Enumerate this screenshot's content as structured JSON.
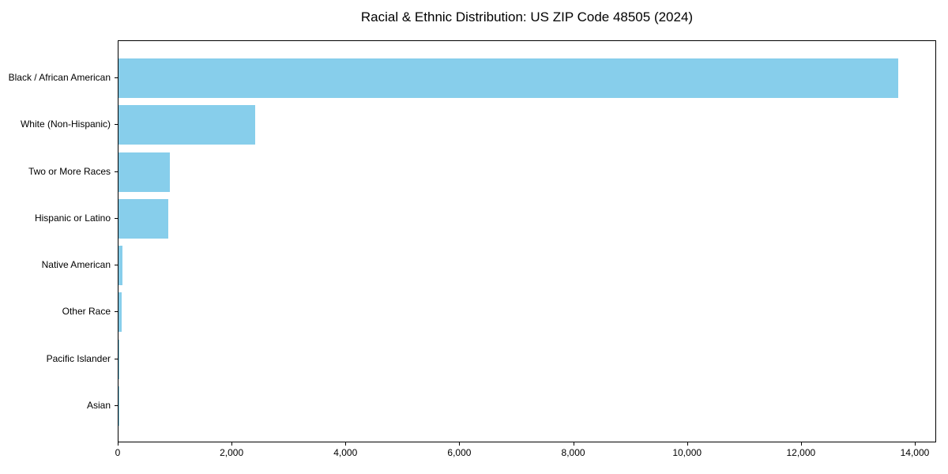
{
  "chart_data": {
    "type": "bar",
    "orientation": "horizontal",
    "title": "Racial & Ethnic Distribution: US ZIP Code 48505 (2024)",
    "categories": [
      "Black / African American",
      "White (Non-Hispanic)",
      "Two or More Races",
      "Hispanic or Latino",
      "Native American",
      "Other Race",
      "Pacific Islander",
      "Asian"
    ],
    "values": [
      13690,
      2400,
      900,
      875,
      70,
      50,
      15,
      10
    ],
    "bar_color": "#87CEEB",
    "xlabel": "",
    "ylabel": "",
    "xlim": [
      0,
      14375
    ],
    "x_ticks": [
      0,
      2000,
      4000,
      6000,
      8000,
      10000,
      12000,
      14000
    ],
    "x_tick_labels": [
      "0",
      "2,000",
      "4,000",
      "6,000",
      "8,000",
      "10,000",
      "12,000",
      "14,000"
    ],
    "grid": false,
    "legend": "none",
    "background_color": "#ffffff",
    "text_color": "#000000",
    "axis_color": "#000000"
  }
}
